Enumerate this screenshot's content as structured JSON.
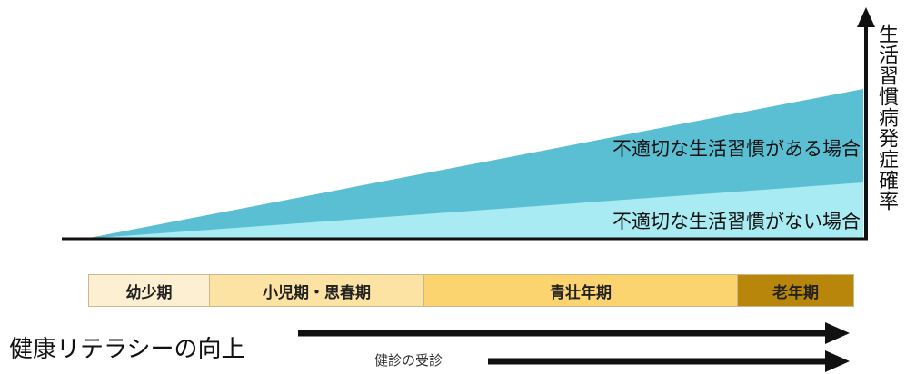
{
  "diagram": {
    "y_axis_label": "生活習慣病発症確率",
    "scenarios": {
      "bad_habits": "不適切な生活習慣がある場合",
      "good_habits": "不適切な生活習慣がない場合"
    },
    "life_stages": [
      "幼少期",
      "小児期・思春期",
      "青壮年期",
      "老年期"
    ],
    "arrows": {
      "health_literacy": "健康リテラシーの向上",
      "health_checkup": "健診の受診"
    },
    "colors": {
      "bad_habits_fill": "#5bbfd3",
      "good_habits_fill": "#a8ebf2",
      "infancy": "#fdf0d2",
      "childhood": "#fde3a3",
      "adulthood": "#fbd36f",
      "old_age": "#b8860b"
    }
  }
}
